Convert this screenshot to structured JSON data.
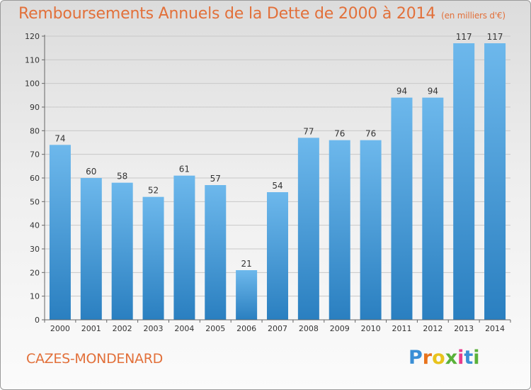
{
  "page": {
    "title": "Remboursements Annuels de la Dette de 2000 à 2014",
    "unit": "(en milliers d'€)",
    "commune": "CAZES-MONDENARD",
    "logo": "Proxiti"
  },
  "colors": {
    "title": "#e2703a",
    "bar_light": "#6db8ec",
    "bar_dark": "#2a7fc0",
    "grid": "#c8c8c8"
  },
  "chart_data": {
    "type": "bar",
    "title": "Remboursements Annuels de la Dette de 2000 à 2014",
    "subtitle": "(en milliers d'€)",
    "xlabel": "",
    "ylabel": "",
    "categories": [
      "2000",
      "2001",
      "2002",
      "2003",
      "2004",
      "2005",
      "2006",
      "2007",
      "2008",
      "2009",
      "2010",
      "2011",
      "2012",
      "2013",
      "2014"
    ],
    "values": [
      74,
      60,
      58,
      52,
      61,
      57,
      21,
      54,
      77,
      76,
      76,
      94,
      94,
      117,
      117
    ],
    "ylim": [
      0,
      120
    ],
    "yticks": [
      0,
      10,
      20,
      30,
      40,
      50,
      60,
      70,
      80,
      90,
      100,
      110,
      120
    ],
    "grid": true,
    "legend": "none"
  }
}
